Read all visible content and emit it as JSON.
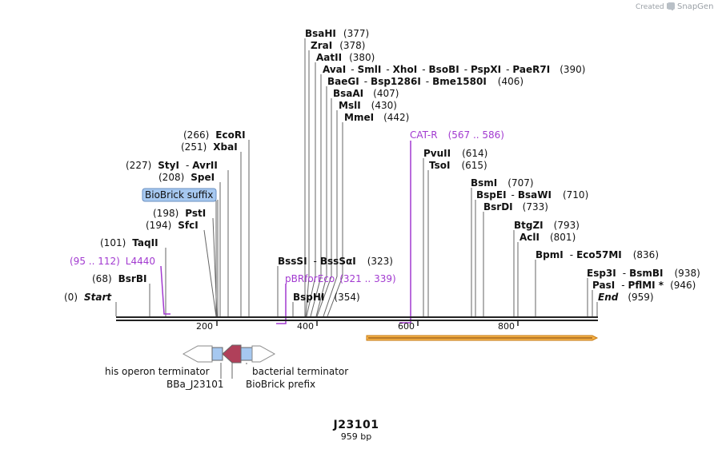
{
  "brand": {
    "created_by": "Created by",
    "name": "SnapGene"
  },
  "title": "J23101",
  "length": "959 bp",
  "ticks": [
    "200",
    "400",
    "600",
    "800"
  ],
  "sites": [
    {
      "name": "BsaHI",
      "pos": "(377)"
    },
    {
      "name": "ZraI",
      "pos": "(378)"
    },
    {
      "name": "AatII",
      "pos": "(380)"
    },
    {
      "names": [
        "AvaI",
        "SmlI",
        "XhoI",
        "BsoBI",
        "PspXI",
        "PaeR7I"
      ],
      "pos": "(390)"
    },
    {
      "names": [
        "BaeGI",
        "Bsp1286I",
        "Bme1580I"
      ],
      "pos": "(406)"
    },
    {
      "name": "BsaAI",
      "pos": "(407)"
    },
    {
      "name": "MslI",
      "pos": "(430)"
    },
    {
      "name": "MmeI",
      "pos": "(442)"
    },
    {
      "name": "EcoRI",
      "pos": "(266)"
    },
    {
      "name": "XbaI",
      "pos": "(251)"
    },
    {
      "names": [
        "StyI",
        "AvrII"
      ],
      "pos": "(227)"
    },
    {
      "name": "SpeI",
      "pos": "(208)"
    },
    {
      "name": "PstI",
      "pos": "(198)"
    },
    {
      "name": "SfcI",
      "pos": "(194)"
    },
    {
      "name": "TaqII",
      "pos": "(101)"
    },
    {
      "name": "BsrBI",
      "pos": "(68)"
    },
    {
      "name": "Start",
      "pos": "(0)"
    },
    {
      "names": [
        "BssSI",
        "BssSαI"
      ],
      "pos": "(323)"
    },
    {
      "name": "BspHI",
      "pos": "(354)"
    },
    {
      "name": "PvuII",
      "pos": "(614)"
    },
    {
      "name": "TsoI",
      "pos": "(615)"
    },
    {
      "name": "BsmI",
      "pos": "(707)"
    },
    {
      "names": [
        "BspEI",
        "BsaWI"
      ],
      "pos": "(710)"
    },
    {
      "name": "BsrDI",
      "pos": "(733)"
    },
    {
      "name": "BtgZI",
      "pos": "(793)"
    },
    {
      "name": "AclI",
      "pos": "(801)"
    },
    {
      "names": [
        "BpmI",
        "Eco57MI"
      ],
      "pos": "(836)"
    },
    {
      "names": [
        "Esp3I",
        "BsmBI"
      ],
      "pos": "(938)"
    },
    {
      "names": [
        "PasI",
        "PflMI *"
      ],
      "pos": "(946)"
    },
    {
      "name": "End",
      "pos": "(959)"
    }
  ],
  "primers": [
    {
      "name": "L4440",
      "range": "(95 .. 112)"
    },
    {
      "name": "CAT-R",
      "range": "(567 .. 586)"
    },
    {
      "name": "pBRforEco",
      "range": "(321 .. 339)"
    }
  ],
  "features": {
    "biobrick_suffix": "BioBrick suffix",
    "his_operon_terminator": "his operon terminator",
    "bba": "BBa_J23101",
    "bacterial_terminator": "bacterial terminator",
    "biobrick_prefix": "BioBrick prefix"
  },
  "colors": {
    "primer": "#a23ad0",
    "feature_blue": "#a6c8f0",
    "promoter": "#b0405a",
    "orf_fill": "#f4b24a",
    "orf_border": "#c77a10"
  }
}
